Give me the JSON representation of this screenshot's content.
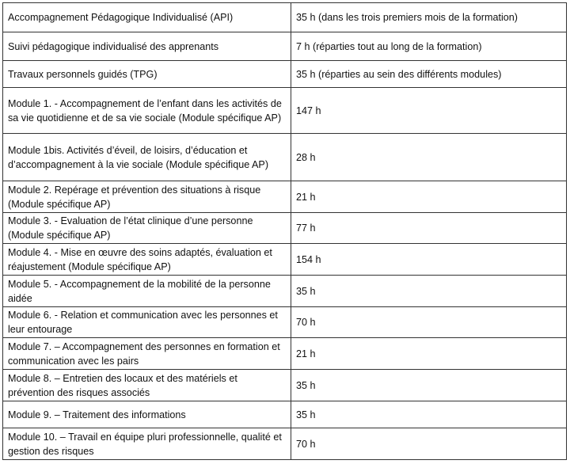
{
  "table": {
    "rows": [
      [
        "Accompagnement Pédagogique Individualisé (API)",
        "35 h (dans les trois premiers mois de la formation)"
      ],
      [
        "Suivi pédagogique individualisé des apprenants",
        "7 h (réparties tout au long de la formation)"
      ],
      [
        "Travaux personnels guidés (TPG)",
        "35 h (réparties au sein des différents modules)"
      ],
      [
        "Module 1. - Accompagnement de l’enfant dans les activités de sa vie quotidienne et de sa vie sociale (Module spécifique AP)",
        "147 h"
      ],
      [
        "Module 1bis. Activités d’éveil, de loisirs, d’éducation et d’accompagnement à la vie sociale (Module spécifique AP)",
        "28 h"
      ],
      [
        "Module 2. Repérage et prévention des situations à risque (Module spécifique AP)",
        "21 h"
      ],
      [
        "Module 3. - Evaluation de l’état clinique d’une personne (Module spécifique AP)",
        "77 h"
      ],
      [
        "Module 4. - Mise en œuvre des soins adaptés, évaluation et réajustement (Module spécifique AP)",
        "154 h"
      ],
      [
        "Module 5. - Accompagnement de la mobilité de la personne aidée",
        "35 h"
      ],
      [
        "Module 6. - Relation et communication avec les personnes et leur entourage",
        "70 h"
      ],
      [
        "Module 7. – Accompagnement des personnes en formation et communication avec les pairs",
        "21 h"
      ],
      [
        "Module 8. – Entretien des locaux et des matériels et prévention des risques associés",
        "35 h"
      ],
      [
        "Module 9. – Traitement des informations",
        "35 h"
      ],
      [
        "Module 10. – Travail en équipe pluri professionnelle, qualité et gestion des risques",
        "70 h"
      ]
    ]
  }
}
